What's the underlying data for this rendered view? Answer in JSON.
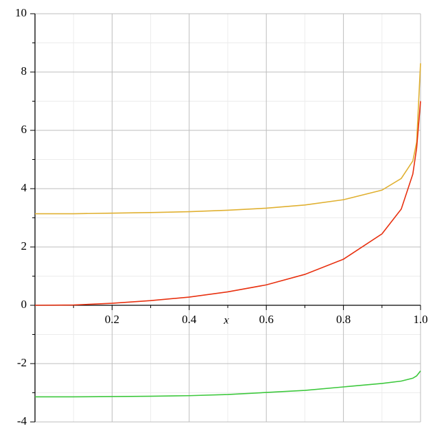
{
  "chart_data": {
    "type": "line",
    "x_label": "x",
    "x": [
      0,
      0.1,
      0.2,
      0.3,
      0.4,
      0.5,
      0.6,
      0.7,
      0.8,
      0.9,
      0.95,
      0.98,
      0.99,
      1.0
    ],
    "series": [
      {
        "color": "#e0b030",
        "values": [
          3.14,
          3.14,
          3.16,
          3.18,
          3.21,
          3.26,
          3.33,
          3.44,
          3.62,
          3.95,
          4.35,
          4.95,
          5.6,
          8.3
        ]
      },
      {
        "color": "#e8300f",
        "values": [
          0,
          0.01,
          0.07,
          0.16,
          0.28,
          0.46,
          0.7,
          1.06,
          1.58,
          2.45,
          3.3,
          4.5,
          5.4,
          7.0
        ]
      },
      {
        "color": "#3cc83c",
        "values": [
          -3.14,
          -3.14,
          -3.13,
          -3.12,
          -3.1,
          -3.06,
          -2.99,
          -2.92,
          -2.8,
          -2.68,
          -2.6,
          -2.5,
          -2.42,
          -2.25
        ]
      }
    ],
    "xlim": [
      0,
      1
    ],
    "ylim": [
      -4,
      10
    ],
    "xticks": [
      0.2,
      0.4,
      0.6,
      0.8,
      {
        "value": 1,
        "label": "1.0"
      }
    ],
    "yticks": [
      -4,
      -2,
      0,
      2,
      4,
      6,
      8,
      10
    ],
    "minor_xticks": [
      0.1,
      0.3,
      0.5,
      0.7,
      0.9
    ],
    "minor_yticks": [
      -3,
      -1,
      1,
      3,
      5,
      7,
      9
    ],
    "grid": true
  }
}
